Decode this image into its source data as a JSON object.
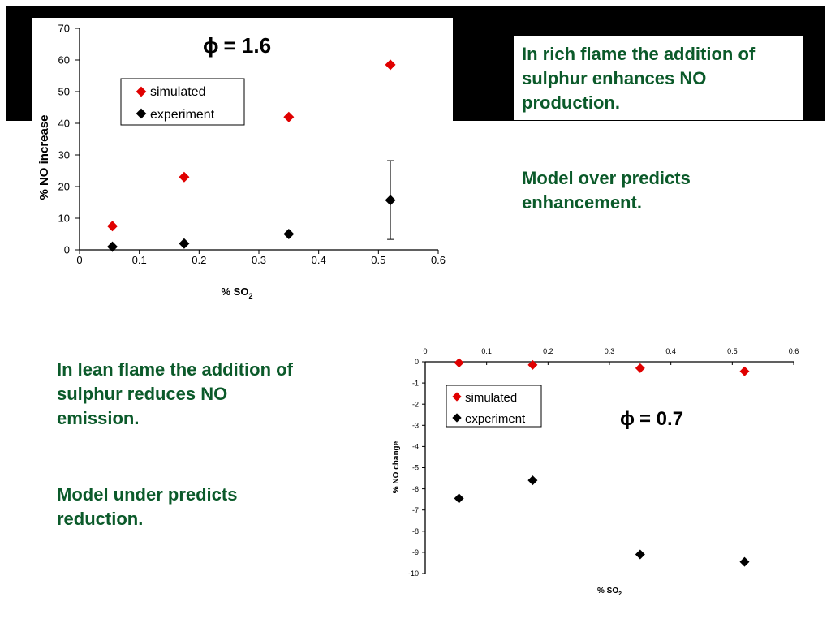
{
  "notes": {
    "rich": {
      "line1": "In rich flame the addition of\nsulphur enhances NO\nproduction.",
      "line2": "Model over predicts\nenhancement."
    },
    "lean": {
      "line1": "In lean flame the addition of\nsulphur reduces NO\nemission.",
      "line2": "Model under predicts\nreduction."
    }
  },
  "colors": {
    "simulated": "#e00000",
    "experiment": "#000000",
    "note_text": "#0b5a2a"
  },
  "chart_data": [
    {
      "type": "scatter",
      "annotation_symbol": "ϕ",
      "annotation_value": "= 1.6",
      "xlabel_main": "% SO",
      "xlabel_sub": "2",
      "ylabel": "% NO increase",
      "xlim": [
        0,
        0.6
      ],
      "ylim": [
        0,
        70
      ],
      "x_ticks": [
        "0",
        "0.1",
        "0.2",
        "0.3",
        "0.4",
        "0.5",
        "0.6"
      ],
      "y_ticks": [
        "0",
        "10",
        "20",
        "30",
        "40",
        "50",
        "60",
        "70"
      ],
      "x_axis_position": "bottom",
      "legend": "top-left",
      "grid": false,
      "series": [
        {
          "name": "simulated",
          "color": "#e00000",
          "points": [
            [
              0.055,
              7.5
            ],
            [
              0.175,
              23
            ],
            [
              0.35,
              42
            ],
            [
              0.52,
              58.5
            ]
          ]
        },
        {
          "name": "experiment",
          "color": "#000000",
          "points": [
            [
              0.055,
              1
            ],
            [
              0.175,
              2
            ],
            [
              0.35,
              5
            ],
            [
              0.52,
              15.7
            ]
          ],
          "error_bars": [
            null,
            null,
            null,
            [
              3.3,
              28.2
            ]
          ]
        }
      ]
    },
    {
      "type": "scatter",
      "annotation_symbol": "ϕ",
      "annotation_value": "= 0.7",
      "xlabel_main": "% SO",
      "xlabel_sub": "2",
      "ylabel": "% NO change",
      "xlim": [
        0,
        0.6
      ],
      "ylim": [
        -10,
        0
      ],
      "x_ticks": [
        "0",
        "0.1",
        "0.2",
        "0.3",
        "0.4",
        "0.5",
        "0.6"
      ],
      "y_ticks": [
        "0",
        "-1",
        "-2",
        "-3",
        "-4",
        "-5",
        "-6",
        "-7",
        "-8",
        "-9",
        "-10"
      ],
      "x_axis_position": "top",
      "legend": "top-left",
      "grid": false,
      "series": [
        {
          "name": "simulated",
          "color": "#e00000",
          "points": [
            [
              0.055,
              -0.05
            ],
            [
              0.175,
              -0.15
            ],
            [
              0.35,
              -0.3
            ],
            [
              0.52,
              -0.45
            ]
          ]
        },
        {
          "name": "experiment",
          "color": "#000000",
          "points": [
            [
              0.055,
              -6.45
            ],
            [
              0.175,
              -5.6
            ],
            [
              0.35,
              -9.1
            ],
            [
              0.52,
              -9.45
            ]
          ]
        }
      ]
    }
  ]
}
